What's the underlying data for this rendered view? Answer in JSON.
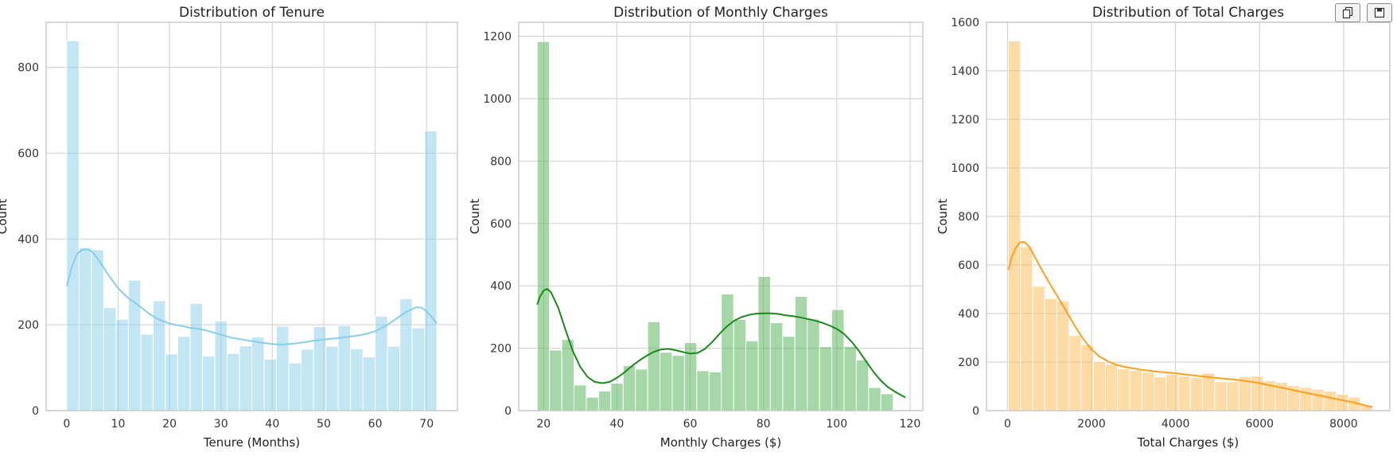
{
  "toolbar": {
    "icons": [
      "copy-icon",
      "save-icon"
    ]
  },
  "chart_data": [
    {
      "type": "bar",
      "title": "Distribution of Tenure",
      "xlabel": "Tenure (Months)",
      "ylabel": "Count",
      "xlim": [
        -4,
        76
      ],
      "ylim": [
        0,
        905
      ],
      "xticks": [
        0,
        10,
        20,
        30,
        40,
        50,
        60,
        70
      ],
      "yticks": [
        0,
        200,
        400,
        600,
        800
      ],
      "bin_start": 0,
      "bin_width": 2.4,
      "values": [
        862,
        380,
        375,
        240,
        213,
        304,
        178,
        256,
        132,
        173,
        250,
        127,
        209,
        133,
        151,
        172,
        120,
        197,
        111,
        143,
        196,
        150,
        199,
        144,
        125,
        220,
        150,
        261,
        193,
        652
      ],
      "kde": [
        [
          0,
          290
        ],
        [
          1,
          335
        ],
        [
          2,
          365
        ],
        [
          3,
          375
        ],
        [
          4,
          376
        ],
        [
          5,
          370
        ],
        [
          6,
          355
        ],
        [
          8,
          318
        ],
        [
          10,
          285
        ],
        [
          12,
          262
        ],
        [
          14,
          245
        ],
        [
          16,
          226
        ],
        [
          18,
          212
        ],
        [
          20,
          203
        ],
        [
          22,
          198
        ],
        [
          24,
          193
        ],
        [
          26,
          190
        ],
        [
          28,
          184
        ],
        [
          30,
          177
        ],
        [
          32,
          170
        ],
        [
          34,
          166
        ],
        [
          36,
          162
        ],
        [
          38,
          158
        ],
        [
          40,
          155
        ],
        [
          42,
          154
        ],
        [
          44,
          156
        ],
        [
          46,
          159
        ],
        [
          48,
          163
        ],
        [
          50,
          166
        ],
        [
          52,
          168
        ],
        [
          54,
          171
        ],
        [
          56,
          174
        ],
        [
          58,
          178
        ],
        [
          60,
          185
        ],
        [
          62,
          197
        ],
        [
          64,
          213
        ],
        [
          66,
          230
        ],
        [
          68,
          241
        ],
        [
          69,
          240
        ],
        [
          70,
          232
        ],
        [
          71,
          218
        ],
        [
          72,
          203
        ]
      ],
      "bar_color": "#87ceeb",
      "line_color": "#87ceeb",
      "grid": true
    },
    {
      "type": "bar",
      "title": "Distribution of Monthly Charges",
      "xlabel": "Monthly Charges ($)",
      "ylabel": "Count",
      "xlim": [
        13.2,
        123.5
      ],
      "ylim": [
        0,
        1245
      ],
      "xticks": [
        20,
        40,
        60,
        80,
        100,
        120
      ],
      "yticks": [
        0,
        200,
        400,
        600,
        800,
        1000,
        1200
      ],
      "bin_start": 18.25,
      "bin_width": 3.35,
      "values": [
        1183,
        194,
        228,
        82,
        43,
        63,
        88,
        144,
        133,
        285,
        187,
        177,
        218,
        128,
        124,
        374,
        292,
        224,
        430,
        282,
        238,
        366,
        293,
        205,
        324,
        206,
        162,
        74,
        54
      ],
      "kde": [
        [
          18.25,
          340
        ],
        [
          19,
          365
        ],
        [
          20,
          385
        ],
        [
          21,
          390
        ],
        [
          22,
          380
        ],
        [
          24,
          330
        ],
        [
          26,
          258
        ],
        [
          28,
          190
        ],
        [
          30,
          140
        ],
        [
          32,
          108
        ],
        [
          34,
          92
        ],
        [
          36,
          88
        ],
        [
          38,
          92
        ],
        [
          40,
          105
        ],
        [
          42,
          122
        ],
        [
          44,
          142
        ],
        [
          46,
          160
        ],
        [
          48,
          175
        ],
        [
          50,
          188
        ],
        [
          52,
          196
        ],
        [
          54,
          198
        ],
        [
          56,
          194
        ],
        [
          58,
          188
        ],
        [
          60,
          183
        ],
        [
          62,
          185
        ],
        [
          64,
          198
        ],
        [
          66,
          220
        ],
        [
          68,
          246
        ],
        [
          70,
          270
        ],
        [
          72,
          288
        ],
        [
          74,
          300
        ],
        [
          76,
          307
        ],
        [
          78,
          311
        ],
        [
          80,
          312
        ],
        [
          82,
          312
        ],
        [
          84,
          310
        ],
        [
          86,
          306
        ],
        [
          88,
          303
        ],
        [
          90,
          299
        ],
        [
          92,
          294
        ],
        [
          94,
          289
        ],
        [
          96,
          282
        ],
        [
          98,
          273
        ],
        [
          100,
          262
        ],
        [
          102,
          246
        ],
        [
          104,
          222
        ],
        [
          106,
          192
        ],
        [
          108,
          158
        ],
        [
          110,
          125
        ],
        [
          112,
          97
        ],
        [
          114,
          75
        ],
        [
          116,
          60
        ],
        [
          118.75,
          42
        ]
      ],
      "bar_color": "#4caf50",
      "line_color": "#1a8a1a",
      "grid": true
    },
    {
      "type": "bar",
      "title": "Distribution of Total Charges",
      "xlabel": "Total Charges ($)",
      "ylabel": "Count",
      "xlim": [
        -500,
        9100
      ],
      "ylim": [
        0,
        1600
      ],
      "xticks": [
        0,
        2000,
        4000,
        6000,
        8000
      ],
      "yticks": [
        0,
        200,
        400,
        600,
        800,
        1000,
        1200,
        1400,
        1600
      ],
      "bin_start": 18.8,
      "bin_width": 289.0,
      "values": [
        1523,
        675,
        512,
        462,
        452,
        310,
        272,
        202,
        191,
        172,
        166,
        158,
        140,
        150,
        143,
        136,
        155,
        119,
        119,
        140,
        143,
        123,
        116,
        103,
        96,
        88,
        80,
        68,
        56,
        22
      ],
      "kde": [
        [
          18.8,
          580
        ],
        [
          100,
          632
        ],
        [
          200,
          672
        ],
        [
          300,
          694
        ],
        [
          400,
          695
        ],
        [
          500,
          680
        ],
        [
          600,
          650
        ],
        [
          800,
          585
        ],
        [
          1000,
          525
        ],
        [
          1200,
          468
        ],
        [
          1400,
          410
        ],
        [
          1600,
          350
        ],
        [
          1800,
          296
        ],
        [
          2000,
          252
        ],
        [
          2200,
          222
        ],
        [
          2400,
          202
        ],
        [
          2600,
          189
        ],
        [
          2800,
          180
        ],
        [
          3000,
          174
        ],
        [
          3200,
          168
        ],
        [
          3400,
          164
        ],
        [
          3600,
          160
        ],
        [
          3800,
          157
        ],
        [
          4000,
          154
        ],
        [
          4200,
          150
        ],
        [
          4400,
          146
        ],
        [
          4600,
          142
        ],
        [
          4800,
          138
        ],
        [
          5000,
          134
        ],
        [
          5200,
          131
        ],
        [
          5400,
          128
        ],
        [
          5600,
          124
        ],
        [
          5800,
          119
        ],
        [
          6000,
          113
        ],
        [
          6200,
          106
        ],
        [
          6400,
          99
        ],
        [
          6600,
          92
        ],
        [
          6800,
          85
        ],
        [
          7000,
          77
        ],
        [
          7200,
          70
        ],
        [
          7400,
          63
        ],
        [
          7600,
          56
        ],
        [
          7800,
          49
        ],
        [
          8000,
          42
        ],
        [
          8200,
          35
        ],
        [
          8400,
          27
        ],
        [
          8600,
          18
        ],
        [
          8685,
          15
        ]
      ],
      "bar_color": "#ffb74d",
      "line_color": "#ff9f1c",
      "grid": true
    }
  ]
}
